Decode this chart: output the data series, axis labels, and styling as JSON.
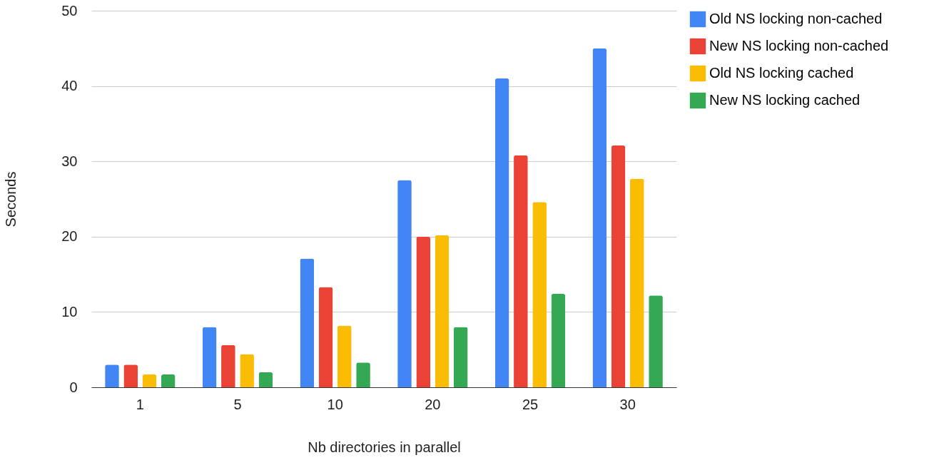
{
  "chart_data": {
    "type": "bar",
    "xlabel": "Nb directories in parallel",
    "ylabel": "Seconds",
    "categories": [
      "1",
      "5",
      "10",
      "20",
      "25",
      "30"
    ],
    "series": [
      {
        "name": "Old NS locking non-cached",
        "color": "#4285f4",
        "values": [
          3.0,
          8.0,
          17.1,
          27.5,
          41.0,
          45.0
        ]
      },
      {
        "name": "New NS locking non-cached",
        "color": "#ea4335",
        "values": [
          3.0,
          5.6,
          13.3,
          20.0,
          30.8,
          32.1
        ]
      },
      {
        "name": "Old NS locking cached",
        "color": "#fbbc04",
        "values": [
          1.7,
          4.4,
          8.2,
          20.2,
          24.6,
          27.7
        ]
      },
      {
        "name": "New NS locking cached",
        "color": "#34a853",
        "values": [
          1.7,
          2.0,
          3.3,
          8.0,
          12.4,
          12.2
        ]
      }
    ],
    "ylim": [
      0,
      50
    ],
    "yticks": [
      0,
      10,
      20,
      30,
      40,
      50
    ],
    "grid": "y",
    "legend": "top right"
  }
}
